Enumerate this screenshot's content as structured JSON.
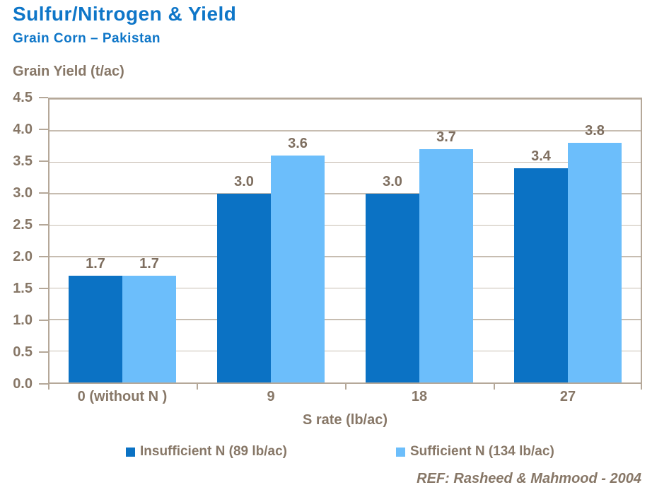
{
  "header": {
    "title": "Sulfur/Nitrogen & Yield",
    "subtitle": "Grain Corn – Pakistan"
  },
  "chart_data": {
    "type": "bar",
    "title": "Sulfur/Nitrogen & Yield",
    "subtitle": "Grain Corn – Pakistan",
    "ylabel": "Grain Yield (t/ac)",
    "xlabel": "S rate (lb/ac)",
    "categories": [
      "0 (without N )",
      "9",
      "18",
      "27"
    ],
    "series": [
      {
        "name": "Insufficient N (89 lb/ac)",
        "color": "#0b72c4",
        "values": [
          1.7,
          3.0,
          3.0,
          3.4
        ]
      },
      {
        "name": "Sufficient N (134 lb/ac)",
        "color": "#6cbefb",
        "values": [
          1.7,
          3.6,
          3.7,
          3.8
        ]
      }
    ],
    "ylim": [
      0,
      4.5
    ],
    "ytick_step": 0.5,
    "grid": true,
    "data_labels": true,
    "legend_position": "bottom"
  },
  "footer": {
    "reference": "REF: Rasheed & Mahmood - 2004"
  },
  "colors": {
    "title_blue": "#0e76c8",
    "text_brown": "#877767",
    "axis_line": "#b5a899",
    "gridline": "#c7bdb1",
    "series1": "#0b72c4",
    "series2": "#6cbefb",
    "background": "#ffffff"
  }
}
